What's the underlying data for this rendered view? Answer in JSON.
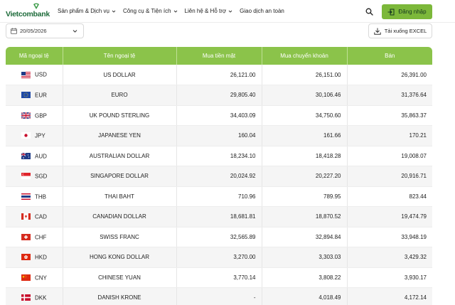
{
  "brand": {
    "name": "Vietcombank",
    "color": "#1d6b3a",
    "accent": "#8bc34a"
  },
  "nav": {
    "items": [
      {
        "label": "Sản phẩm & Dịch vụ",
        "dropdown": true
      },
      {
        "label": "Công cụ & Tiện ích",
        "dropdown": true
      },
      {
        "label": "Liên hệ & Hỗ trợ",
        "dropdown": true
      },
      {
        "label": "Giao dịch an toàn",
        "dropdown": false
      }
    ],
    "search_icon": "search-icon",
    "login_label": "Đăng nhập"
  },
  "toolbar": {
    "date_value": "20/05/2026",
    "download_label": "Tải xuống EXCEL"
  },
  "table": {
    "headers": [
      "Mã ngoại tệ",
      "Tên ngoại tệ",
      "Mua tiền mặt",
      "Mua chuyển khoản",
      "Bán"
    ],
    "rows": [
      {
        "code": "USD",
        "flag": "us",
        "name": "US DOLLAR",
        "cash": "26,121.00",
        "transfer": "26,151.00",
        "sell": "26,391.00"
      },
      {
        "code": "EUR",
        "flag": "eu",
        "name": "EURO",
        "cash": "29,805.40",
        "transfer": "30,106.46",
        "sell": "31,376.64"
      },
      {
        "code": "GBP",
        "flag": "gb",
        "name": "UK POUND STERLING",
        "cash": "34,403.09",
        "transfer": "34,750.60",
        "sell": "35,863.37"
      },
      {
        "code": "JPY",
        "flag": "jp",
        "name": "JAPANESE YEN",
        "cash": "160.04",
        "transfer": "161.66",
        "sell": "170.21"
      },
      {
        "code": "AUD",
        "flag": "au",
        "name": "AUSTRALIAN DOLLAR",
        "cash": "18,234.10",
        "transfer": "18,418.28",
        "sell": "19,008.07"
      },
      {
        "code": "SGD",
        "flag": "sg",
        "name": "SINGAPORE DOLLAR",
        "cash": "20,024.92",
        "transfer": "20,227.20",
        "sell": "20,916.71"
      },
      {
        "code": "THB",
        "flag": "th",
        "name": "THAI BAHT",
        "cash": "710.96",
        "transfer": "789.95",
        "sell": "823.44"
      },
      {
        "code": "CAD",
        "flag": "ca",
        "name": "CANADIAN DOLLAR",
        "cash": "18,681.81",
        "transfer": "18,870.52",
        "sell": "19,474.79"
      },
      {
        "code": "CHF",
        "flag": "ch",
        "name": "SWISS FRANC",
        "cash": "32,565.89",
        "transfer": "32,894.84",
        "sell": "33,948.19"
      },
      {
        "code": "HKD",
        "flag": "hk",
        "name": "HONG KONG DOLLAR",
        "cash": "3,270.00",
        "transfer": "3,303.03",
        "sell": "3,429.32"
      },
      {
        "code": "CNY",
        "flag": "cn",
        "name": "CHINESE YUAN",
        "cash": "3,770.14",
        "transfer": "3,808.22",
        "sell": "3,930.17"
      },
      {
        "code": "DKK",
        "flag": "dk",
        "name": "DANISH KRONE",
        "cash": "-",
        "transfer": "4,018.49",
        "sell": "4,172.14"
      }
    ]
  }
}
